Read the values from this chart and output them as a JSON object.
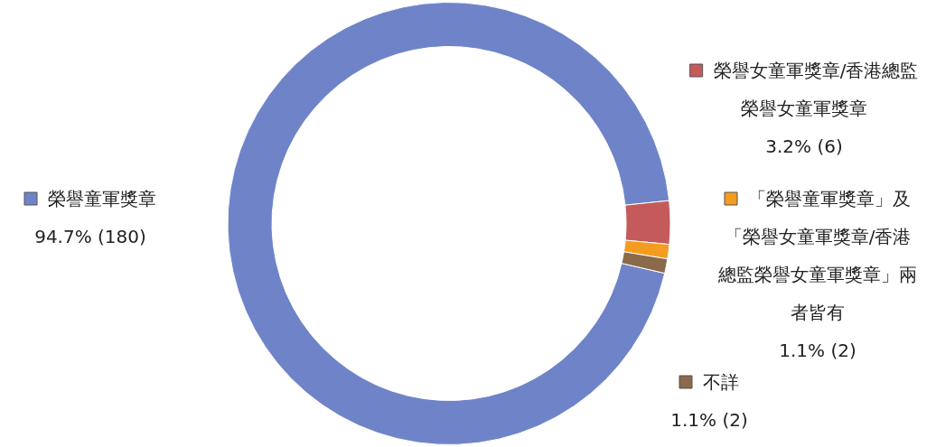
{
  "chart_data": {
    "type": "donut",
    "categories": [
      "榮譽童軍獎章",
      "榮譽女童軍獎章/香港總監榮譽女童軍獎章",
      "「榮譽童軍獎章」及「榮譽女童軍獎章/香港總監榮譽女童軍獎章」兩者皆有",
      "不詳"
    ],
    "values": [
      180,
      6,
      2,
      2
    ],
    "value_labels": [
      "94.7% (180)",
      "3.2% (6)",
      "1.1% (2)",
      "1.1% (2)"
    ],
    "colors": [
      "#6f84c8",
      "#c55a5a",
      "#f39c1f",
      "#8b6a4a"
    ],
    "legend": "right"
  }
}
